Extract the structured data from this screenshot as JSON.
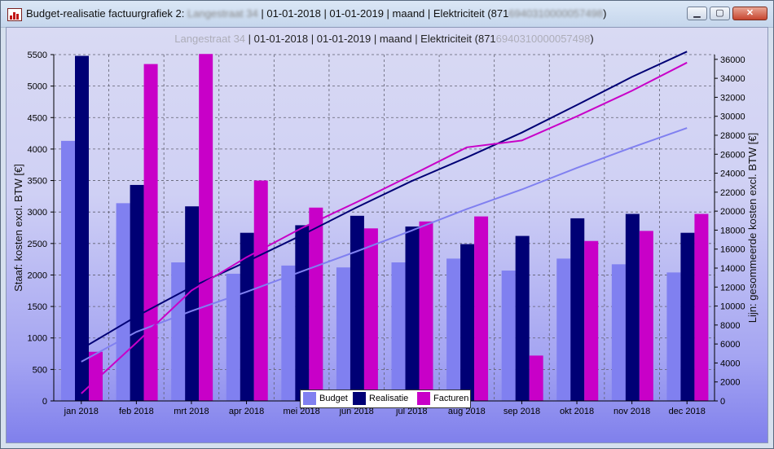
{
  "window": {
    "title_prefix": "Budget-realisatie factuurgrafiek 2: ",
    "title_address": "Langestraat 34",
    "title_suffix": " | 01-01-2018 | 01-01-2019 | maand | Elektriciteit (871",
    "title_ean": "6940310000057498",
    "title_end": ")",
    "minimize_icon": "minimize-icon",
    "maximize_icon": "maximize-icon",
    "close_icon": "close-icon"
  },
  "chart_data": {
    "type": "bar",
    "title_address": "Langestraat 34",
    "title_suffix": " | 01-01-2018 | 01-01-2019 | maand | Elektriciteit (871",
    "title_ean": "6940310000057498",
    "title_end": ")",
    "categories": [
      "jan 2018",
      "feb 2018",
      "mrt 2018",
      "apr 2018",
      "mei 2018",
      "jun 2018",
      "jul 2018",
      "aug 2018",
      "sep 2018",
      "okt 2018",
      "nov 2018",
      "dec 2018"
    ],
    "series": [
      {
        "name": "Budget",
        "color": "#8080f0",
        "values": [
          4130,
          3140,
          2200,
          2020,
          2150,
          2120,
          2200,
          2260,
          2070,
          2260,
          2170,
          2040
        ]
      },
      {
        "name": "Realisatie",
        "color": "#000075",
        "values": [
          5480,
          3430,
          3090,
          2670,
          2790,
          2940,
          2770,
          2490,
          2620,
          2900,
          2970,
          2670
        ]
      },
      {
        "name": "Facturen",
        "color": "#c800c8",
        "values": [
          780,
          5350,
          5510,
          3500,
          3070,
          2740,
          2850,
          2930,
          720,
          2540,
          2700,
          2970
        ]
      }
    ],
    "cumulative_lines": [
      {
        "name": "Budget",
        "color": "#8080f0",
        "values": [
          4130,
          7270,
          9470,
          11490,
          13640,
          15760,
          17960,
          20220,
          22290,
          24550,
          26720,
          28760
        ]
      },
      {
        "name": "Realisatie",
        "color": "#000075",
        "values": [
          5480,
          8910,
          12000,
          14670,
          17460,
          20400,
          23170,
          25660,
          28280,
          31180,
          34150,
          36820
        ]
      },
      {
        "name": "Facturen",
        "color": "#c800c8",
        "values": [
          780,
          6130,
          11640,
          15140,
          18210,
          20950,
          23800,
          26730,
          27450,
          29990,
          32690,
          35660
        ]
      }
    ],
    "ylabel": "Staaf: kosten excl. BTW [€]",
    "y2label": "Lijn: gesommeerde kosten excl. BTW [€]",
    "ylim": [
      0,
      5500
    ],
    "y2lim": [
      0,
      36500
    ],
    "yticks": [
      0,
      500,
      1000,
      1500,
      2000,
      2500,
      3000,
      3500,
      4000,
      4500,
      5000,
      5500
    ],
    "y2ticks": [
      0,
      2000,
      4000,
      6000,
      8000,
      10000,
      12000,
      14000,
      16000,
      18000,
      20000,
      22000,
      24000,
      26000,
      28000,
      30000,
      32000,
      34000,
      36000
    ],
    "grid": true,
    "legend_position": "bottom-center"
  }
}
